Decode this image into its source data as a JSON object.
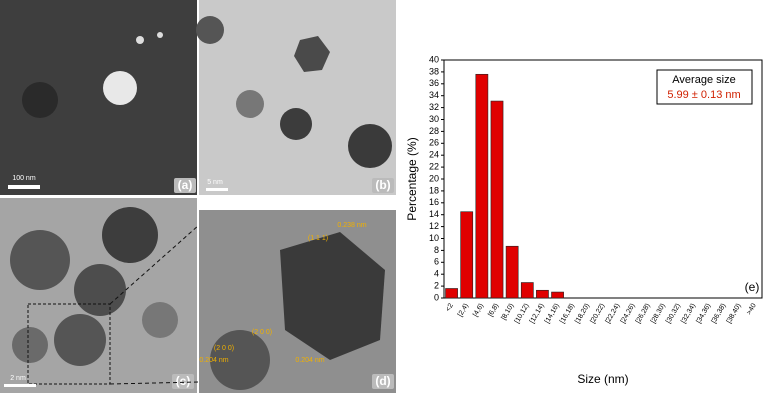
{
  "panels": [
    {
      "label": "(a)",
      "scale_bar": "100 nm"
    },
    {
      "label": "(b)",
      "scale_bar": "5 nm"
    },
    {
      "label": "(c)",
      "scale_bar": "2 nm"
    },
    {
      "label": "(d)",
      "annotations": [
        "(1 1 1)",
        "0.238 nm",
        "(2 0 0)",
        "0.204 nm",
        "(2 0 0)",
        "0.204 nm"
      ]
    }
  ],
  "chart_data": {
    "type": "bar",
    "panel_label": "(e)",
    "x_label": "Size (nm)",
    "y_label": "Percentage (%)",
    "legend_title": "Average size",
    "annotation": "5.99 ± 0.13 nm",
    "categories": [
      "<2",
      "[2,4)",
      "[4,6)",
      "[6,8)",
      "[8,10)",
      "[10,12)",
      "[12,14)",
      "[14,16)",
      "[16,18)",
      "[18,20)",
      "[20,22)",
      "[22,24)",
      "[24,26)",
      "[26,28)",
      "[28,30)",
      "[30,32)",
      "[32,34)",
      "[34,36)",
      "[36,38)",
      "[38,40)",
      ">40"
    ],
    "values": [
      1.6,
      14.5,
      37.6,
      33.1,
      8.7,
      2.6,
      1.3,
      1.0,
      0,
      0,
      0,
      0,
      0,
      0,
      0,
      0,
      0,
      0,
      0,
      0,
      0
    ],
    "color": "#e00000",
    "ylim": [
      0,
      40
    ],
    "yticks": [
      0,
      2,
      4,
      6,
      8,
      10,
      12,
      14,
      16,
      18,
      20,
      22,
      24,
      26,
      28,
      30,
      32,
      34,
      36,
      38,
      40
    ]
  }
}
